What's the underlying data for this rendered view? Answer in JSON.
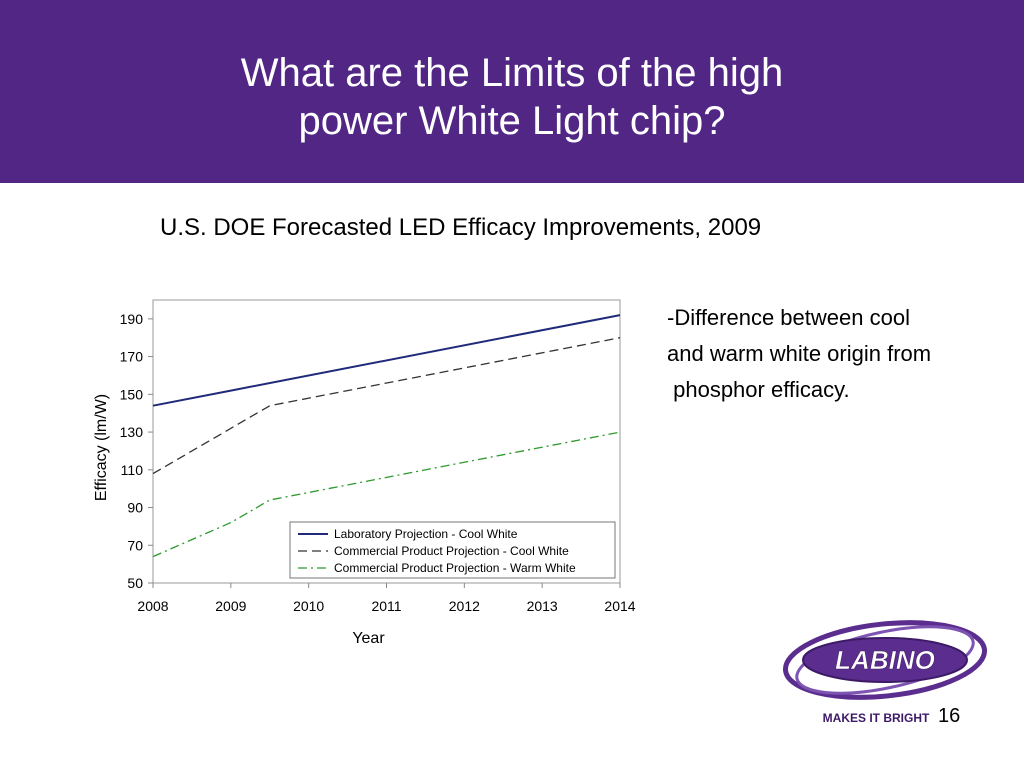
{
  "slide": {
    "title_line1": "What are the Limits of the high",
    "title_line2": "power White Light chip?",
    "subtitle": "U.S. DOE Forecasted LED Efficacy Improvements, 2009",
    "notes": [
      "-Difference between cool",
      "and warm white origin from",
      " phosphor efficacy."
    ],
    "page_number": "16",
    "logo_text": "LABINO",
    "logo_tagline": "MAKES IT BRIGHT",
    "colors": {
      "header": "#512684",
      "lab": "#1f2a7a",
      "commercial_cool": "#333333",
      "commercial_warm": "#2e9a2e"
    }
  },
  "chart_data": {
    "type": "line",
    "xlabel": "Year",
    "ylabel": "Efficacy (lm/W)",
    "xlim": [
      2008,
      2014
    ],
    "ylim": [
      50,
      200
    ],
    "xticks": [
      2008,
      2009,
      2010,
      2011,
      2012,
      2013,
      2014
    ],
    "yticks": [
      50,
      70,
      90,
      110,
      130,
      150,
      170,
      190
    ],
    "legend_position": "bottom-right",
    "series": [
      {
        "name": "Laboratory Projection - Cool White",
        "style": "solid",
        "color": "#1f2a7a",
        "points": [
          [
            2008,
            144
          ],
          [
            2009,
            152
          ],
          [
            2014,
            192
          ]
        ]
      },
      {
        "name": "Commercial Product Projection - Cool White",
        "style": "dashed",
        "color": "#333333",
        "points": [
          [
            2008,
            108
          ],
          [
            2009.5,
            144
          ],
          [
            2014,
            180
          ]
        ]
      },
      {
        "name": "Commercial Product Projection - Warm White",
        "style": "dashdot",
        "color": "#2e9a2e",
        "points": [
          [
            2008,
            64
          ],
          [
            2009,
            82
          ],
          [
            2009.5,
            94
          ],
          [
            2014,
            130
          ]
        ]
      }
    ]
  }
}
